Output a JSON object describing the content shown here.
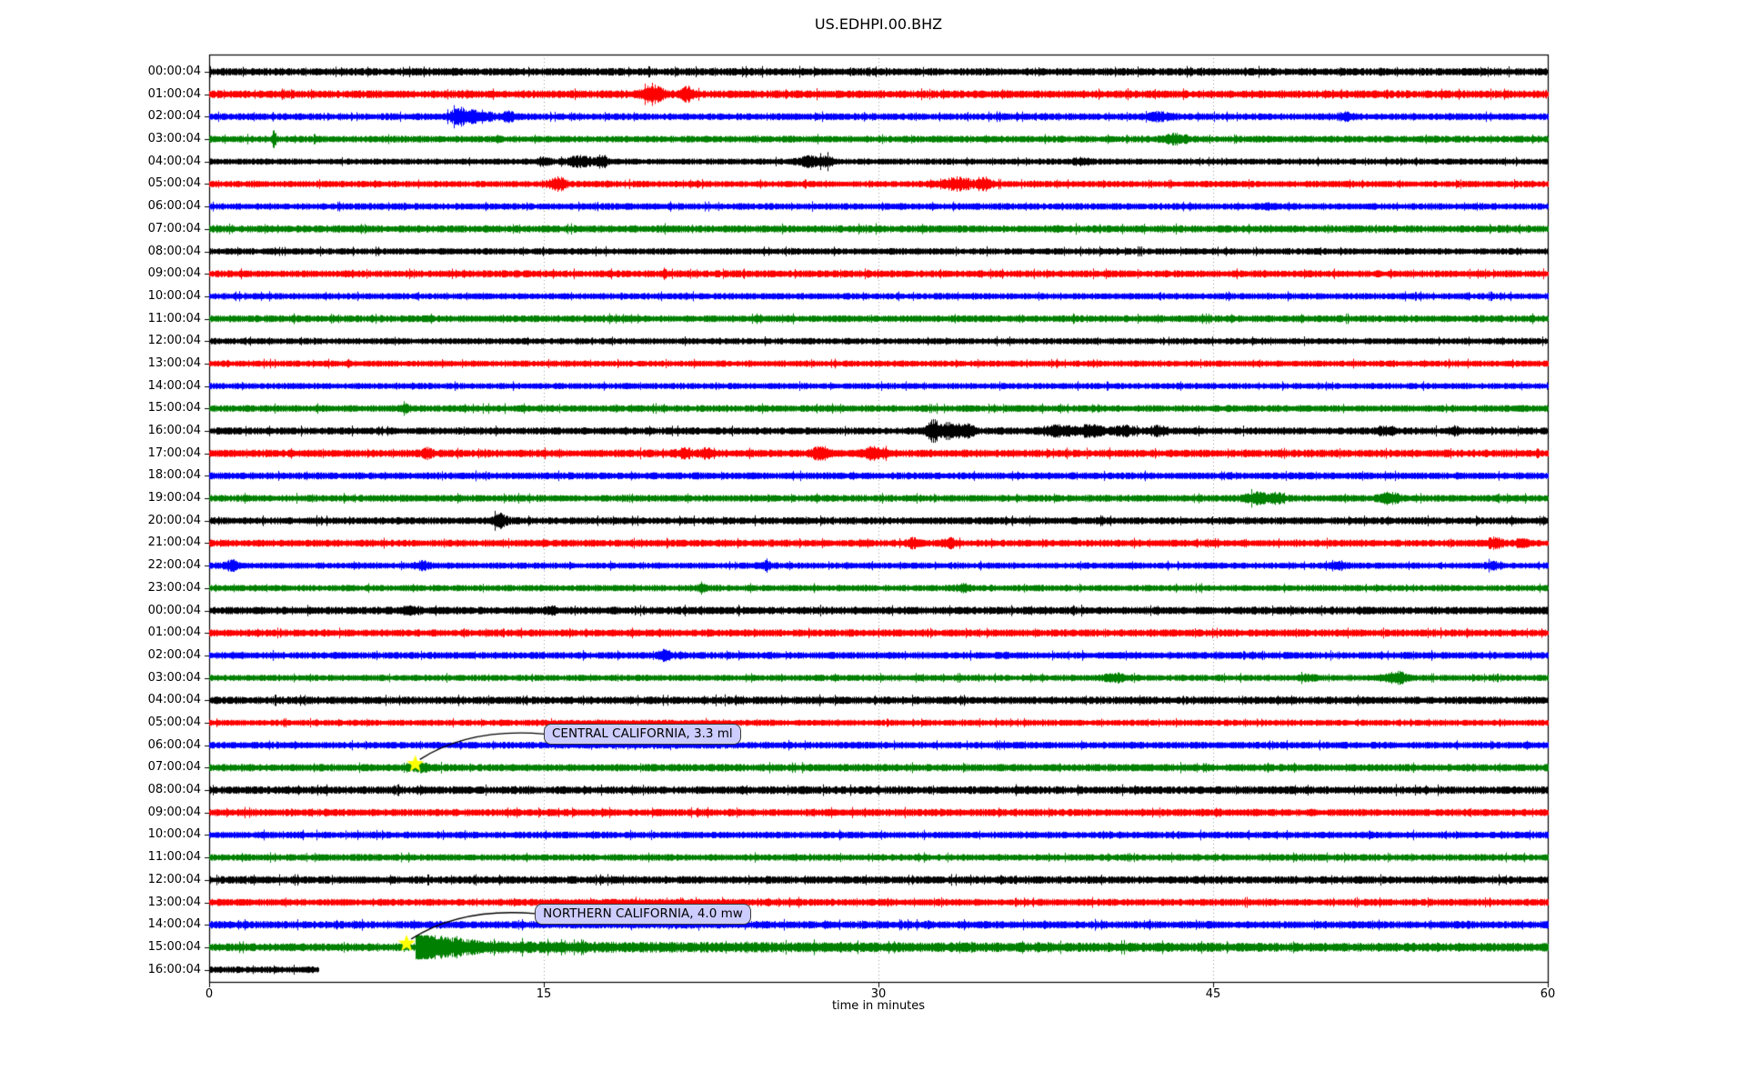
{
  "chart_data": {
    "type": "line",
    "subtype": "seismogram-dayplot",
    "title": "US.EDHPI.00.BHZ",
    "xlabel": "time in minutes",
    "x_range": [
      0,
      60
    ],
    "x_ticks": [
      0,
      15,
      30,
      45,
      60
    ],
    "grid_minutes": [
      15,
      30,
      45
    ],
    "grid_on": true,
    "trace_color_cycle": [
      "#000000",
      "#ff0000",
      "#0000ff",
      "#008000"
    ],
    "row_labels": [
      "00:00:04",
      "01:00:04",
      "02:00:04",
      "03:00:04",
      "04:00:04",
      "05:00:04",
      "06:00:04",
      "07:00:04",
      "08:00:04",
      "09:00:04",
      "10:00:04",
      "11:00:04",
      "12:00:04",
      "13:00:04",
      "14:00:04",
      "15:00:04",
      "16:00:04",
      "17:00:04",
      "18:00:04",
      "19:00:04",
      "20:00:04",
      "21:00:04",
      "22:00:04",
      "23:00:04",
      "00:00:04",
      "01:00:04",
      "02:00:04",
      "03:00:04",
      "04:00:04",
      "05:00:04",
      "06:00:04",
      "07:00:04",
      "08:00:04",
      "09:00:04",
      "10:00:04",
      "11:00:04",
      "12:00:04",
      "13:00:04",
      "14:00:04",
      "15:00:04",
      "16:00:04"
    ],
    "partial_rows": [
      {
        "row": 40,
        "start_minute": 0,
        "end_minute": 4.9
      }
    ],
    "events": [
      {
        "row": 1,
        "t": 19.9,
        "amp": 2.6,
        "dur": 0.8
      },
      {
        "row": 1,
        "t": 21.4,
        "amp": 2.4,
        "dur": 0.5
      },
      {
        "row": 2,
        "t": 11.2,
        "amp": 2.8,
        "dur": 0.7
      },
      {
        "row": 2,
        "t": 12.1,
        "amp": 2.2,
        "dur": 0.9
      },
      {
        "row": 2,
        "t": 13.4,
        "amp": 1.9,
        "dur": 0.5
      },
      {
        "row": 2,
        "t": 42.6,
        "amp": 1.8,
        "dur": 0.8
      },
      {
        "row": 2,
        "t": 50.9,
        "amp": 1.6,
        "dur": 0.5
      },
      {
        "row": 3,
        "t": 2.9,
        "amp": 3.4,
        "dur": 0.12
      },
      {
        "row": 3,
        "t": 43.3,
        "amp": 1.9,
        "dur": 0.9
      },
      {
        "row": 4,
        "t": 15.0,
        "amp": 1.9,
        "dur": 0.5
      },
      {
        "row": 4,
        "t": 16.6,
        "amp": 2.2,
        "dur": 0.9
      },
      {
        "row": 4,
        "t": 17.6,
        "amp": 2.0,
        "dur": 0.5
      },
      {
        "row": 4,
        "t": 26.9,
        "amp": 2.3,
        "dur": 0.8
      },
      {
        "row": 4,
        "t": 27.7,
        "amp": 2.0,
        "dur": 0.5
      },
      {
        "row": 4,
        "t": 39.1,
        "amp": 1.7,
        "dur": 0.6
      },
      {
        "row": 5,
        "t": 15.6,
        "amp": 2.6,
        "dur": 0.6
      },
      {
        "row": 5,
        "t": 33.5,
        "amp": 2.4,
        "dur": 1.2
      },
      {
        "row": 5,
        "t": 34.8,
        "amp": 2.3,
        "dur": 0.5
      },
      {
        "row": 6,
        "t": 47.4,
        "amp": 1.5,
        "dur": 0.5
      },
      {
        "row": 9,
        "t": 20.4,
        "amp": 1.9,
        "dur": 0.12
      },
      {
        "row": 15,
        "t": 8.8,
        "amp": 1.6,
        "dur": 0.3
      },
      {
        "row": 16,
        "t": 32.4,
        "amp": 3.3,
        "dur": 0.5
      },
      {
        "row": 16,
        "t": 33.2,
        "amp": 2.6,
        "dur": 0.9
      },
      {
        "row": 16,
        "t": 34.0,
        "amp": 2.2,
        "dur": 0.5
      },
      {
        "row": 16,
        "t": 38.0,
        "amp": 1.9,
        "dur": 1.2
      },
      {
        "row": 16,
        "t": 39.5,
        "amp": 2.0,
        "dur": 1.0
      },
      {
        "row": 16,
        "t": 41.0,
        "amp": 1.9,
        "dur": 0.8
      },
      {
        "row": 16,
        "t": 42.5,
        "amp": 1.8,
        "dur": 0.6
      },
      {
        "row": 16,
        "t": 52.8,
        "amp": 1.7,
        "dur": 0.6
      },
      {
        "row": 16,
        "t": 55.8,
        "amp": 1.6,
        "dur": 0.4
      },
      {
        "row": 17,
        "t": 9.8,
        "amp": 1.9,
        "dur": 0.4
      },
      {
        "row": 17,
        "t": 21.3,
        "amp": 1.9,
        "dur": 0.5
      },
      {
        "row": 17,
        "t": 22.3,
        "amp": 1.8,
        "dur": 0.4
      },
      {
        "row": 17,
        "t": 27.4,
        "amp": 2.2,
        "dur": 0.6
      },
      {
        "row": 17,
        "t": 29.8,
        "amp": 2.1,
        "dur": 0.8
      },
      {
        "row": 19,
        "t": 46.9,
        "amp": 2.1,
        "dur": 0.8
      },
      {
        "row": 19,
        "t": 47.8,
        "amp": 1.9,
        "dur": 0.6
      },
      {
        "row": 19,
        "t": 52.9,
        "amp": 2.2,
        "dur": 0.7
      },
      {
        "row": 20,
        "t": 13.0,
        "amp": 2.4,
        "dur": 0.5
      },
      {
        "row": 21,
        "t": 31.5,
        "amp": 1.9,
        "dur": 0.4
      },
      {
        "row": 21,
        "t": 33.2,
        "amp": 1.8,
        "dur": 0.4
      },
      {
        "row": 21,
        "t": 57.6,
        "amp": 2.0,
        "dur": 0.6
      },
      {
        "row": 21,
        "t": 58.9,
        "amp": 1.7,
        "dur": 0.4
      },
      {
        "row": 22,
        "t": 1.0,
        "amp": 2.1,
        "dur": 0.5
      },
      {
        "row": 22,
        "t": 9.5,
        "amp": 1.9,
        "dur": 0.5
      },
      {
        "row": 22,
        "t": 24.9,
        "amp": 1.8,
        "dur": 0.5
      },
      {
        "row": 22,
        "t": 50.6,
        "amp": 1.6,
        "dur": 0.6
      },
      {
        "row": 22,
        "t": 57.5,
        "amp": 1.8,
        "dur": 0.5
      },
      {
        "row": 23,
        "t": 22.1,
        "amp": 1.7,
        "dur": 0.5
      },
      {
        "row": 23,
        "t": 33.8,
        "amp": 1.7,
        "dur": 0.5
      },
      {
        "row": 24,
        "t": 9.0,
        "amp": 1.7,
        "dur": 0.6
      },
      {
        "row": 24,
        "t": 15.3,
        "amp": 1.5,
        "dur": 0.4
      },
      {
        "row": 26,
        "t": 20.4,
        "amp": 1.9,
        "dur": 0.5
      },
      {
        "row": 27,
        "t": 40.6,
        "amp": 1.8,
        "dur": 0.9
      },
      {
        "row": 27,
        "t": 49.2,
        "amp": 1.6,
        "dur": 0.5
      },
      {
        "row": 27,
        "t": 53.2,
        "amp": 2.3,
        "dur": 0.9
      },
      {
        "row": 31,
        "t": 9.5,
        "amp": 1.5,
        "dur": 0.8
      },
      {
        "row": 39,
        "t": 9.25,
        "amp": 5.6,
        "dur": 1.2,
        "shape": "decay"
      },
      {
        "row": 39,
        "t": 9.3,
        "amp": 1.55,
        "dur": 30,
        "shape": "decay"
      }
    ],
    "annotations": [
      {
        "label": "CENTRAL CALIFORNIA, 3.3 ml",
        "row": 31,
        "minute": 9.24,
        "box_minute": 15.0
      },
      {
        "label": "NORTHERN CALIFORNIA, 4.0 mw",
        "row": 39,
        "minute": 8.85,
        "box_minute": 14.6
      }
    ],
    "marker": {
      "shape": "star",
      "color": "#ffff00"
    },
    "annotation_bg": "#ccccff",
    "grid_color": "#999999"
  }
}
